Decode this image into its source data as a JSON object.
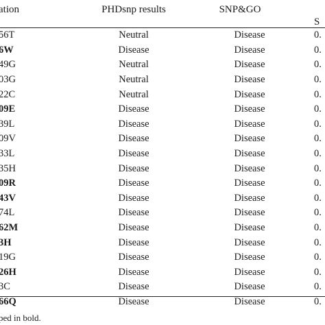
{
  "header": {
    "col0": "ation",
    "col1": "PHDsnp results",
    "col2": "SNP&GO",
    "col3": "S"
  },
  "rows": [
    {
      "mutation": "56T",
      "bold": false,
      "phdsnp": "Neutral",
      "snpgo": "Disease",
      "last": "0."
    },
    {
      "mutation": "6W",
      "bold": true,
      "phdsnp": "Disease",
      "snpgo": "Disease",
      "last": "0."
    },
    {
      "mutation": "49G",
      "bold": false,
      "phdsnp": "Neutral",
      "snpgo": "Disease",
      "last": "0."
    },
    {
      "mutation": "03G",
      "bold": false,
      "phdsnp": "Neutral",
      "snpgo": "Disease",
      "last": "0."
    },
    {
      "mutation": "22C",
      "bold": false,
      "phdsnp": "Neutral",
      "snpgo": "Disease",
      "last": "0."
    },
    {
      "mutation": "09E",
      "bold": true,
      "phdsnp": "Disease",
      "snpgo": "Disease",
      "last": "0."
    },
    {
      "mutation": "39L",
      "bold": false,
      "phdsnp": "Disease",
      "snpgo": "Disease",
      "last": "0."
    },
    {
      "mutation": "09V",
      "bold": false,
      "phdsnp": "Disease",
      "snpgo": "Disease",
      "last": "0."
    },
    {
      "mutation": "33L",
      "bold": false,
      "phdsnp": "Disease",
      "snpgo": "Disease",
      "last": "0."
    },
    {
      "mutation": "35H",
      "bold": false,
      "phdsnp": "Disease",
      "snpgo": "Disease",
      "last": "0."
    },
    {
      "mutation": "09R",
      "bold": true,
      "phdsnp": "Disease",
      "snpgo": "Disease",
      "last": "0."
    },
    {
      "mutation": "43V",
      "bold": true,
      "phdsnp": "Disease",
      "snpgo": "Disease",
      "last": "0."
    },
    {
      "mutation": "74L",
      "bold": false,
      "phdsnp": "Disease",
      "snpgo": "Disease",
      "last": "0."
    },
    {
      "mutation": "62M",
      "bold": true,
      "phdsnp": "Disease",
      "snpgo": "Disease",
      "last": "0."
    },
    {
      "mutation": "3H",
      "bold": true,
      "phdsnp": "Disease",
      "snpgo": "Disease",
      "last": "0."
    },
    {
      "mutation": "19G",
      "bold": false,
      "phdsnp": "Disease",
      "snpgo": "Disease",
      "last": "0."
    },
    {
      "mutation": "26H",
      "bold": true,
      "phdsnp": "Disease",
      "snpgo": "Disease",
      "last": "0."
    },
    {
      "mutation": "3C",
      "bold": false,
      "phdsnp": "Disease",
      "snpgo": "Disease",
      "last": "0."
    },
    {
      "mutation": "66Q",
      "bold": true,
      "phdsnp": "Disease",
      "snpgo": "Disease",
      "last": "0."
    }
  ],
  "footnote": "ped in bold."
}
